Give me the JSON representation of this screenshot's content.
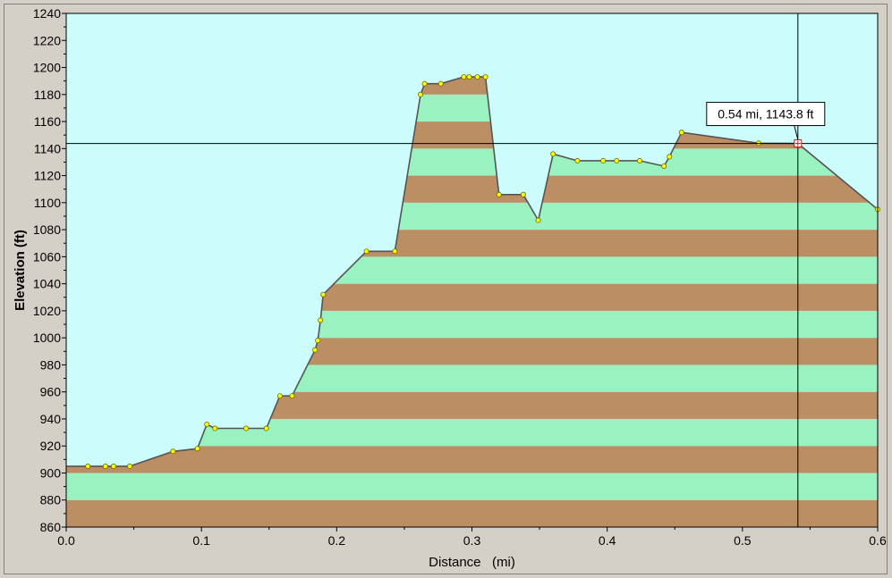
{
  "colors": {
    "background": "#d4d0c8",
    "sky": "#ccfcfc",
    "band_light": "#99f2bf",
    "band_dark": "#bc8e64",
    "profile_line": "#555555",
    "marker": "#ffff00"
  },
  "chart_data": {
    "type": "area",
    "title": "",
    "xlabel": "Distance   (mi)",
    "ylabel": "Elevation (ft)",
    "xlim": [
      0.0,
      0.6
    ],
    "ylim": [
      860,
      1240
    ],
    "x_ticks": [
      "0.0",
      "0.1",
      "0.2",
      "0.3",
      "0.4",
      "0.5",
      "0.6"
    ],
    "y_ticks": [
      "860",
      "880",
      "900",
      "920",
      "940",
      "960",
      "980",
      "1000",
      "1020",
      "1040",
      "1060",
      "1080",
      "1100",
      "1120",
      "1140",
      "1160",
      "1180",
      "1200",
      "1220",
      "1240"
    ],
    "grid": false,
    "band_interval_ft": 20,
    "series": [
      {
        "x": [
          0.0,
          0.016,
          0.029,
          0.035,
          0.047,
          0.079,
          0.097,
          0.104,
          0.11,
          0.133,
          0.148,
          0.158,
          0.167,
          0.184,
          0.186,
          0.188,
          0.19,
          0.222,
          0.243,
          0.262,
          0.265,
          0.277,
          0.294,
          0.298,
          0.304,
          0.31,
          0.32,
          0.338,
          0.349,
          0.36,
          0.378,
          0.397,
          0.407,
          0.424,
          0.442,
          0.446,
          0.455,
          0.512,
          0.541,
          0.6
        ],
        "y": [
          905,
          905,
          905,
          905,
          905,
          916,
          918,
          936,
          933,
          933,
          933,
          957,
          957,
          991,
          998,
          1013,
          1032,
          1064,
          1064,
          1180,
          1188,
          1188,
          1193,
          1193,
          1193,
          1193,
          1106,
          1106,
          1087,
          1136,
          1131,
          1131,
          1131,
          1131,
          1127,
          1134,
          1152,
          1144,
          1143.8,
          1095
        ]
      }
    ],
    "cursor": {
      "x": 0.541,
      "y": 1143.8,
      "label": "0.54 mi, 1143.8 ft"
    }
  }
}
